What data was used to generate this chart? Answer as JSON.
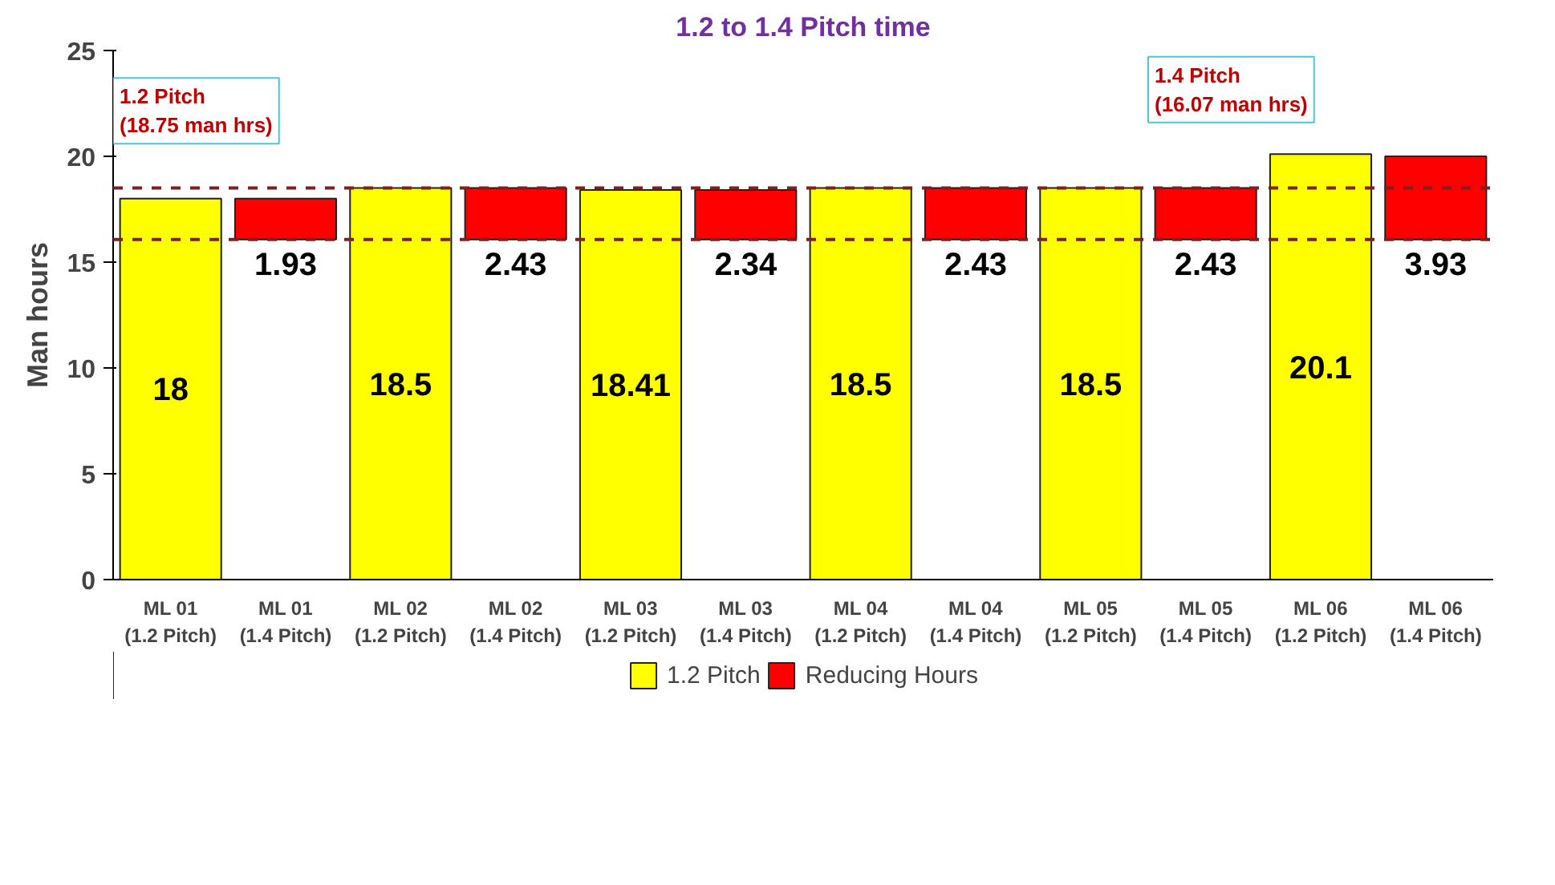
{
  "chart_data": {
    "type": "bar",
    "title": "1.2 to 1.4 Pitch time",
    "ylabel": "Man hours",
    "categories": [
      "ML 01\n(1.2 Pitch)",
      "ML 01\n(1.4 Pitch)",
      "ML 02\n(1.2 Pitch)",
      "ML 02\n(1.4 Pitch)",
      "ML 03\n(1.2 Pitch)",
      "ML 03\n(1.4 Pitch)",
      "ML 04\n(1.2 Pitch)",
      "ML 04\n(1.4 Pitch)",
      "ML 05\n(1.2 Pitch)",
      "ML 05\n(1.4 Pitch)",
      "ML 06\n(1.2 Pitch)",
      "ML 06\n(1.4 Pitch)"
    ],
    "series": [
      {
        "name": "1.2 Pitch",
        "color": "#ffff00",
        "values": [
          18,
          null,
          18.5,
          null,
          18.41,
          null,
          18.5,
          null,
          18.5,
          null,
          20.1,
          null
        ]
      },
      {
        "name": "Reducing Hours",
        "color": "#ff0000",
        "values": [
          null,
          1.93,
          null,
          2.43,
          null,
          2.34,
          null,
          2.43,
          null,
          2.43,
          null,
          3.93
        ],
        "base": [
          null,
          16.07,
          null,
          16.07,
          null,
          16.07,
          null,
          16.07,
          null,
          16.07,
          null,
          16.07
        ]
      }
    ],
    "ylim": [
      0,
      25
    ],
    "yticks": [
      0,
      5,
      10,
      15,
      20,
      25
    ],
    "ref_lines": [
      {
        "axis": "y",
        "value": 18.5,
        "color": "#7f1f1f",
        "line_style": "dashed"
      },
      {
        "axis": "y",
        "value": 16.07,
        "color": "#7f1f1f",
        "line_style": "dashed"
      }
    ],
    "annotations": [
      "1.2 Pitch\n(18.75 man hrs)",
      "1.4 Pitch\n(16.07 man hrs)"
    ],
    "data_labels": true,
    "grid": false,
    "legend": "bottom"
  }
}
